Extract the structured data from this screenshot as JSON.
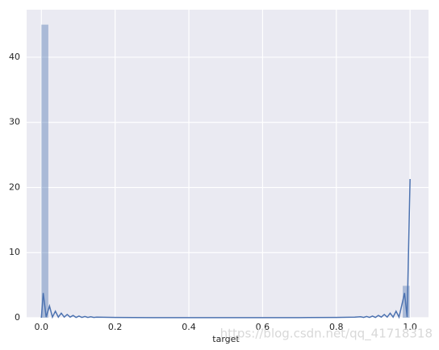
{
  "chart_data": {
    "type": "distplot",
    "x_label": "target",
    "watermark": "https://blog.csdn.net/qq_41718318",
    "color": "#4c72b0",
    "background": "#eaeaf2",
    "grid": true,
    "xlim": [
      -0.04,
      1.05
    ],
    "ylim": [
      0,
      47.3
    ],
    "xticks": [
      {
        "value": 0,
        "label": "0.0"
      },
      0.2,
      0.4,
      0.6,
      0.8,
      {
        "value": 1,
        "label": "1.0"
      }
    ],
    "yticks": [
      0,
      10,
      20,
      30,
      40
    ],
    "bins": [
      0,
      0.02,
      0.04,
      0.06,
      0.08,
      0.1,
      0.12,
      0.14,
      0.16,
      0.18,
      0.2,
      0.22,
      0.24,
      0.26,
      0.28,
      0.3,
      0.32,
      0.34,
      0.36,
      0.38,
      0.4,
      0.42,
      0.44,
      0.46,
      0.48,
      0.5,
      0.52,
      0.54,
      0.56,
      0.58,
      0.6,
      0.62,
      0.64,
      0.66,
      0.68,
      0.7,
      0.72,
      0.74,
      0.76,
      0.78,
      0.8,
      0.82,
      0.84,
      0.86,
      0.88,
      0.9,
      0.92,
      0.94,
      0.96,
      0.98,
      1
    ],
    "counts": [
      45,
      0,
      0,
      0,
      0,
      0,
      0,
      0,
      0,
      0,
      0,
      0,
      0,
      0,
      0,
      0,
      0,
      0,
      0,
      0,
      0,
      0,
      0,
      0,
      0,
      0,
      0,
      0,
      0,
      0,
      0,
      0,
      0,
      0,
      0,
      0,
      0,
      0,
      0,
      0,
      0,
      0,
      0,
      0,
      0,
      0,
      0,
      0,
      0,
      4.9
    ],
    "kde_x": [
      0,
      0.005,
      0.013,
      0.022,
      0.03,
      0.038,
      0.046,
      0.054,
      0.062,
      0.07,
      0.078,
      0.086,
      0.094,
      0.102,
      0.11,
      0.118,
      0.126,
      0.134,
      0.142,
      0.15,
      0.2,
      0.3,
      0.5,
      0.7,
      0.8,
      0.85,
      0.866,
      0.874,
      0.882,
      0.89,
      0.898,
      0.906,
      0.914,
      0.922,
      0.93,
      0.938,
      0.946,
      0.954,
      0.962,
      0.97,
      0.977,
      0.985,
      0.992,
      1.0
    ],
    "kde_y": [
      0,
      3.8,
      0.1,
      1.8,
      0.1,
      1.0,
      0.1,
      0.7,
      0.1,
      0.5,
      0.1,
      0.35,
      0.05,
      0.25,
      0.05,
      0.2,
      0.05,
      0.15,
      0.05,
      0.1,
      0.05,
      0.02,
      0.02,
      0.02,
      0.05,
      0.1,
      0.15,
      0.05,
      0.2,
      0.05,
      0.25,
      0.05,
      0.35,
      0.1,
      0.5,
      0.1,
      0.7,
      0.1,
      1.0,
      0.1,
      1.8,
      3.8,
      0.1,
      21.3
    ]
  }
}
